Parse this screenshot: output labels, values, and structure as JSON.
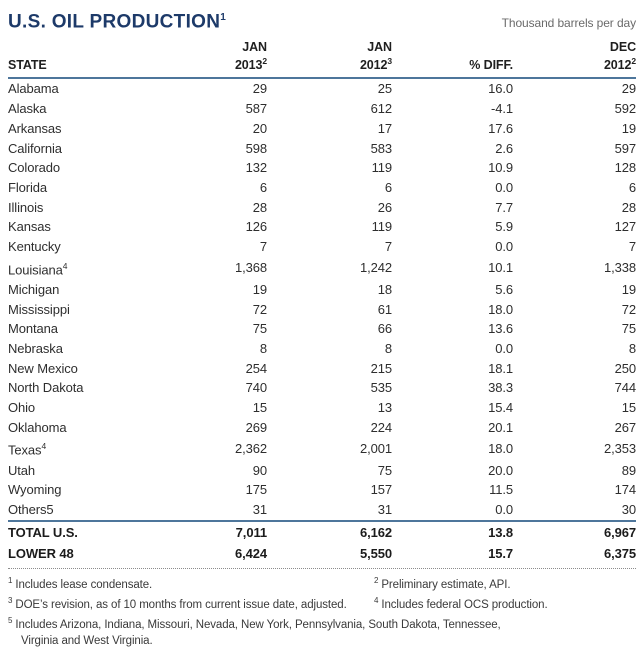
{
  "colors": {
    "title_navy": "#1d3a69",
    "rule_blue": "#4e769b",
    "body_text": "#2e2e2e",
    "note_gray": "#6a6a6a"
  },
  "chart_data": {
    "type": "table",
    "title": "U.S. OIL PRODUCTION",
    "title_sup": "1",
    "unit_note": "Thousand barrels per day",
    "columns": [
      {
        "line1": "",
        "line2": "STATE",
        "sup": ""
      },
      {
        "line1": "JAN",
        "line2": "2013",
        "sup": "2"
      },
      {
        "line1": "JAN",
        "line2": "2012",
        "sup": "3"
      },
      {
        "line1": "",
        "line2": "% DIFF.",
        "sup": ""
      },
      {
        "line1": "DEC",
        "line2": "2012",
        "sup": "2"
      }
    ],
    "rows": [
      {
        "state": "Alabama",
        "state_sup": "",
        "values": [
          "29",
          "25",
          "16.0",
          "29"
        ]
      },
      {
        "state": "Alaska",
        "state_sup": "",
        "values": [
          "587",
          "612",
          "-4.1",
          "592"
        ]
      },
      {
        "state": "Arkansas",
        "state_sup": "",
        "values": [
          "20",
          "17",
          "17.6",
          "19"
        ]
      },
      {
        "state": "California",
        "state_sup": "",
        "values": [
          "598",
          "583",
          "2.6",
          "597"
        ]
      },
      {
        "state": "Colorado",
        "state_sup": "",
        "values": [
          "132",
          "119",
          "10.9",
          "128"
        ]
      },
      {
        "state": "Florida",
        "state_sup": "",
        "values": [
          "6",
          "6",
          "0.0",
          "6"
        ]
      },
      {
        "state": "Illinois",
        "state_sup": "",
        "values": [
          "28",
          "26",
          "7.7",
          "28"
        ]
      },
      {
        "state": "Kansas",
        "state_sup": "",
        "values": [
          "126",
          "119",
          "5.9",
          "127"
        ]
      },
      {
        "state": "Kentucky",
        "state_sup": "",
        "values": [
          "7",
          "7",
          "0.0",
          "7"
        ]
      },
      {
        "state": "Louisiana",
        "state_sup": "4",
        "values": [
          "1,368",
          "1,242",
          "10.1",
          "1,338"
        ]
      },
      {
        "state": "Michigan",
        "state_sup": "",
        "values": [
          "19",
          "18",
          "5.6",
          "19"
        ]
      },
      {
        "state": "Mississippi",
        "state_sup": "",
        "values": [
          "72",
          "61",
          "18.0",
          "72"
        ]
      },
      {
        "state": "Montana",
        "state_sup": "",
        "values": [
          "75",
          "66",
          "13.6",
          "75"
        ]
      },
      {
        "state": "Nebraska",
        "state_sup": "",
        "values": [
          "8",
          "8",
          "0.0",
          "8"
        ]
      },
      {
        "state": "New Mexico",
        "state_sup": "",
        "values": [
          "254",
          "215",
          "18.1",
          "250"
        ]
      },
      {
        "state": "North Dakota",
        "state_sup": "",
        "values": [
          "740",
          "535",
          "38.3",
          "744"
        ]
      },
      {
        "state": "Ohio",
        "state_sup": "",
        "values": [
          "15",
          "13",
          "15.4",
          "15"
        ]
      },
      {
        "state": "Oklahoma",
        "state_sup": "",
        "values": [
          "269",
          "224",
          "20.1",
          "267"
        ]
      },
      {
        "state": "Texas",
        "state_sup": "4",
        "values": [
          "2,362",
          "2,001",
          "18.0",
          "2,353"
        ]
      },
      {
        "state": "Utah",
        "state_sup": "",
        "values": [
          "90",
          "75",
          "20.0",
          "89"
        ]
      },
      {
        "state": "Wyoming",
        "state_sup": "",
        "values": [
          "175",
          "157",
          "11.5",
          "174"
        ]
      },
      {
        "state": "Others5",
        "state_sup": "",
        "values": [
          "31",
          "31",
          "0.0",
          "30"
        ]
      }
    ],
    "totals": [
      {
        "state": "TOTAL U.S.",
        "state_sup": "",
        "values": [
          "7,011",
          "6,162",
          "13.8",
          "6,967"
        ]
      },
      {
        "state": "LOWER 48",
        "state_sup": "",
        "values": [
          "6,424",
          "5,550",
          "15.7",
          "6,375"
        ]
      }
    ],
    "footnotes": {
      "fn1": {
        "sup": "1",
        "text": "Includes lease condensate."
      },
      "fn2": {
        "sup": "2",
        "text": "Preliminary estimate, API."
      },
      "fn3": {
        "sup": "3",
        "text": "DOE’s revision, as of 10 months from current issue date, adjusted."
      },
      "fn4": {
        "sup": "4",
        "text": "Includes federal OCS production."
      },
      "fn5": {
        "sup": "5",
        "line1": "Includes Arizona, Indiana, Missouri, Nevada, New York, Pennsylvania, South Dakota, Tennessee,",
        "line2": "Virginia and West Virginia."
      }
    }
  }
}
